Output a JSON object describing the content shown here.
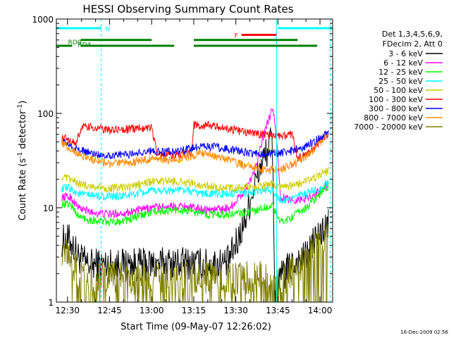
{
  "chart_data": {
    "type": "line",
    "title": "HESSI Observing Summary Count Rates",
    "xlabel": "Start Time (09-May-07 12:26:02)",
    "ylabel_main": "Count Rate (s",
    "ylabel_sup1": "-1",
    "ylabel_mid": " detector",
    "ylabel_sup2": "-1",
    "ylabel_end": ")",
    "y_scale": "log",
    "ylim": [
      1,
      1000
    ],
    "xlim": [
      "12:26:02",
      "14:04:30"
    ],
    "x_ticks": [
      "12:30",
      "12:45",
      "13:00",
      "13:15",
      "13:30",
      "13:45",
      "14:00"
    ],
    "y_ticks": [
      "1",
      "10",
      "100",
      "1000"
    ],
    "legend_position": "right",
    "legend_header": [
      "Det 1,3,4,5,6,9,",
      "FDecim 2, Att 0"
    ],
    "series": [
      {
        "name": "3 - 6 keV",
        "color": "#000000",
        "points": [
          [
            "12:28",
            4.5
          ],
          [
            "12:31",
            4.5
          ],
          [
            "12:34",
            3
          ],
          [
            "12:37",
            2.5
          ],
          [
            "12:45",
            2.5
          ],
          [
            "12:55",
            2.5
          ],
          [
            "13:00",
            2.5
          ],
          [
            "13:10",
            2.6
          ],
          [
            "13:20",
            2.5
          ],
          [
            "13:27",
            2.6
          ],
          [
            "13:30",
            4
          ],
          [
            "13:33",
            7
          ],
          [
            "13:36",
            15
          ],
          [
            "13:39",
            28
          ],
          [
            "13:43",
            55
          ],
          [
            "13:44",
            1.0
          ],
          [
            "13:46",
            1.8
          ],
          [
            "13:50",
            2.5
          ],
          [
            "13:55",
            3
          ],
          [
            "13:58",
            4.5
          ],
          [
            "14:03",
            6.5
          ]
        ]
      },
      {
        "name": "6 - 12 keV",
        "color": "#ff00ff",
        "points": [
          [
            "12:28",
            13
          ],
          [
            "12:31",
            13
          ],
          [
            "12:34",
            10
          ],
          [
            "12:38",
            9
          ],
          [
            "12:45",
            8.5
          ],
          [
            "12:52",
            9
          ],
          [
            "13:00",
            10
          ],
          [
            "13:10",
            10.5
          ],
          [
            "13:20",
            9.5
          ],
          [
            "13:28",
            10
          ],
          [
            "13:33",
            15
          ],
          [
            "13:36",
            22
          ],
          [
            "13:38",
            35
          ],
          [
            "13:40",
            60
          ],
          [
            "13:42",
            90
          ],
          [
            "13:43",
            110
          ],
          [
            "13:44",
            80
          ],
          [
            "13:46",
            13
          ],
          [
            "13:50",
            12
          ],
          [
            "13:55",
            12.5
          ],
          [
            "14:00",
            15
          ],
          [
            "14:03",
            18
          ]
        ]
      },
      {
        "name": "12 - 25 keV",
        "color": "#00ff00",
        "points": [
          [
            "12:28",
            11
          ],
          [
            "12:31",
            11
          ],
          [
            "12:34",
            8
          ],
          [
            "12:38",
            7.5
          ],
          [
            "12:45",
            7
          ],
          [
            "12:52",
            7.5
          ],
          [
            "13:00",
            9
          ],
          [
            "13:10",
            9.5
          ],
          [
            "13:20",
            8.5
          ],
          [
            "13:28",
            8.5
          ],
          [
            "13:35",
            9
          ],
          [
            "13:40",
            10
          ],
          [
            "13:43",
            10.5
          ],
          [
            "13:46",
            7
          ],
          [
            "13:50",
            8
          ],
          [
            "13:55",
            10
          ],
          [
            "14:00",
            14
          ],
          [
            "14:03",
            17
          ]
        ]
      },
      {
        "name": "25 - 50 keV",
        "color": "#00ffff",
        "points": [
          [
            "12:28",
            16
          ],
          [
            "12:31",
            16
          ],
          [
            "12:34",
            14
          ],
          [
            "12:38",
            13.5
          ],
          [
            "12:45",
            13
          ],
          [
            "12:52",
            13.5
          ],
          [
            "13:00",
            15
          ],
          [
            "13:10",
            15.5
          ],
          [
            "13:20",
            14
          ],
          [
            "13:28",
            14
          ],
          [
            "13:35",
            14.5
          ],
          [
            "13:40",
            15
          ],
          [
            "13:43",
            15.5
          ],
          [
            "13:46",
            12
          ],
          [
            "13:50",
            12.5
          ],
          [
            "13:55",
            14
          ],
          [
            "14:00",
            16
          ],
          [
            "14:03",
            19
          ]
        ]
      },
      {
        "name": "50 - 100 keV",
        "color": "#cccc00",
        "points": [
          [
            "12:28",
            21
          ],
          [
            "12:31",
            20
          ],
          [
            "12:34",
            18
          ],
          [
            "12:38",
            17
          ],
          [
            "12:45",
            16
          ],
          [
            "12:52",
            16.5
          ],
          [
            "13:00",
            19
          ],
          [
            "13:10",
            19
          ],
          [
            "13:20",
            17
          ],
          [
            "13:28",
            16
          ],
          [
            "13:35",
            16.5
          ],
          [
            "13:40",
            17
          ],
          [
            "13:43",
            18
          ],
          [
            "13:46",
            16
          ],
          [
            "13:50",
            17
          ],
          [
            "13:55",
            19
          ],
          [
            "14:00",
            22
          ],
          [
            "14:03",
            25
          ]
        ]
      },
      {
        "name": "100 - 300 keV",
        "color": "#ff0000",
        "points": [
          [
            "12:28",
            55
          ],
          [
            "12:31",
            52
          ],
          [
            "12:33",
            47
          ],
          [
            "12:35",
            72
          ],
          [
            "12:40",
            70
          ],
          [
            "12:45",
            66
          ],
          [
            "12:52",
            68
          ],
          [
            "13:00",
            72
          ],
          [
            "13:02",
            36
          ],
          [
            "13:10",
            37
          ],
          [
            "13:14",
            37
          ],
          [
            "13:15",
            75
          ],
          [
            "13:20",
            75
          ],
          [
            "13:28",
            68
          ],
          [
            "13:35",
            62
          ],
          [
            "13:40",
            60
          ],
          [
            "13:46",
            58
          ],
          [
            "13:50",
            60
          ],
          [
            "13:52",
            34
          ],
          [
            "13:55",
            36
          ],
          [
            "14:00",
            50
          ],
          [
            "14:03",
            60
          ]
        ]
      },
      {
        "name": "300 - 800 keV",
        "color": "#0000ff",
        "points": [
          [
            "12:28",
            52
          ],
          [
            "12:31",
            45
          ],
          [
            "12:35",
            40
          ],
          [
            "12:40",
            37
          ],
          [
            "12:45",
            36
          ],
          [
            "12:52",
            37
          ],
          [
            "13:00",
            40
          ],
          [
            "13:05",
            39
          ],
          [
            "13:10",
            40
          ],
          [
            "13:14",
            42
          ],
          [
            "13:18",
            46
          ],
          [
            "13:25",
            43
          ],
          [
            "13:30",
            40
          ],
          [
            "13:35",
            38
          ],
          [
            "13:40",
            37
          ],
          [
            "13:45",
            38
          ],
          [
            "13:50",
            40
          ],
          [
            "13:55",
            45
          ],
          [
            "14:00",
            55
          ],
          [
            "14:03",
            62
          ]
        ]
      },
      {
        "name": "800 - 7000 keV",
        "color": "#ff8c00",
        "points": [
          [
            "12:28",
            50
          ],
          [
            "12:31",
            42
          ],
          [
            "12:35",
            36
          ],
          [
            "12:40",
            32
          ],
          [
            "12:45",
            29
          ],
          [
            "12:52",
            30
          ],
          [
            "13:00",
            33
          ],
          [
            "13:05",
            32
          ],
          [
            "13:10",
            33
          ],
          [
            "13:14",
            35
          ],
          [
            "13:18",
            38
          ],
          [
            "13:25",
            34
          ],
          [
            "13:30",
            30
          ],
          [
            "13:35",
            27
          ],
          [
            "13:40",
            25
          ],
          [
            "13:45",
            25
          ],
          [
            "13:50",
            28
          ],
          [
            "13:55",
            35
          ],
          [
            "14:00",
            48
          ],
          [
            "14:03",
            58
          ]
        ]
      },
      {
        "name": "7000 - 20000 keV",
        "color": "#808000",
        "points": [
          [
            "12:28",
            3.5
          ],
          [
            "12:31",
            3.0
          ],
          [
            "12:34",
            2.0
          ],
          [
            "12:40",
            1.8
          ],
          [
            "12:50",
            1.8
          ],
          [
            "13:00",
            1.8
          ],
          [
            "13:10",
            1.8
          ],
          [
            "13:20",
            1.8
          ],
          [
            "13:30",
            1.8
          ],
          [
            "13:40",
            1.8
          ],
          [
            "13:45",
            1.6
          ],
          [
            "13:50",
            2.0
          ],
          [
            "13:55",
            2.8
          ],
          [
            "14:00",
            4.0
          ],
          [
            "14:03",
            6.0
          ]
        ]
      }
    ],
    "flags": [
      {
        "label": "N",
        "color": "#00ffff",
        "y": 800,
        "segments": [
          [
            "12:26:02",
            "12:42:00"
          ],
          [
            "13:45:00",
            "14:04:30"
          ]
        ]
      },
      {
        "label": "F",
        "color": "#ff0000",
        "y": 680,
        "segments": [
          [
            "13:32:00",
            "13:44:30"
          ]
        ]
      },
      {
        "label": "RD0",
        "color": "#008000",
        "y": 520,
        "segments": [
          [
            "12:26:02",
            "12:31:40"
          ],
          [
            "12:34:40",
            "13:00:00"
          ],
          [
            "13:15:00",
            "13:52:00"
          ]
        ]
      },
      {
        "label": "RD4",
        "color": "#008000",
        "y": 600,
        "segments": [
          [
            "12:34:40",
            "13:00:00"
          ],
          [
            "13:15:00",
            "13:52:00"
          ]
        ]
      },
      {
        "label": "",
        "color": "#008000",
        "y": 520,
        "segments": [
          [
            "13:00:00",
            "13:08:00"
          ],
          [
            "13:52:00",
            "13:59:00"
          ]
        ]
      }
    ],
    "vertical_lines": [
      {
        "x": "12:42:00",
        "color": "#00ffff",
        "style": "dashed"
      },
      {
        "x": "13:44:30",
        "color": "#00ffff",
        "style": "solid"
      },
      {
        "x": "14:03:40",
        "color": "#00ffff",
        "style": "dashed"
      }
    ]
  },
  "timestamp": "16-Dec-2009 02:56"
}
